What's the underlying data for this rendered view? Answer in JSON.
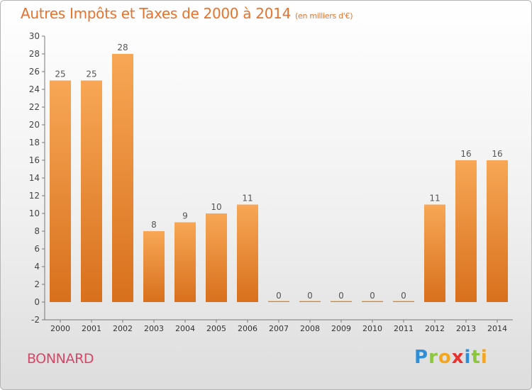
{
  "header": {
    "title": "Autres Impôts et Taxes de 2000 à 2014",
    "unit": "(en milliers d'€)"
  },
  "footer": {
    "commune": "BONNARD",
    "logo_letters": [
      {
        "char": "P",
        "color": "#2e8fd8"
      },
      {
        "char": "r",
        "color": "#8cc63e"
      },
      {
        "char": "o",
        "color": "#f4a71e"
      },
      {
        "char": "x",
        "color": "#e7322d"
      },
      {
        "char": "i",
        "color": "#2e8fd8"
      },
      {
        "char": "t",
        "color": "#8cc63e"
      },
      {
        "char": "i",
        "color": "#f4a71e"
      }
    ]
  },
  "chart_data": {
    "type": "bar",
    "title": "Autres Impôts et Taxes de 2000 à 2014",
    "subtitle": "(en milliers d'€)",
    "categories": [
      "2000",
      "2001",
      "2002",
      "2003",
      "2004",
      "2005",
      "2006",
      "2007",
      "2008",
      "2009",
      "2010",
      "2011",
      "2012",
      "2013",
      "2014"
    ],
    "values": [
      25,
      25,
      28,
      8,
      9,
      10,
      11,
      0,
      0,
      0,
      0,
      0,
      11,
      16,
      16
    ],
    "ylim": [
      -2,
      30
    ],
    "yticks": [
      -2,
      0,
      2,
      4,
      6,
      8,
      10,
      12,
      14,
      16,
      18,
      20,
      22,
      24,
      26,
      28,
      30
    ],
    "grid": false,
    "colors": {
      "bar_light": "#f7a755",
      "bar_dark": "#d8701d",
      "label": "#555555",
      "axis": "#777777"
    }
  }
}
